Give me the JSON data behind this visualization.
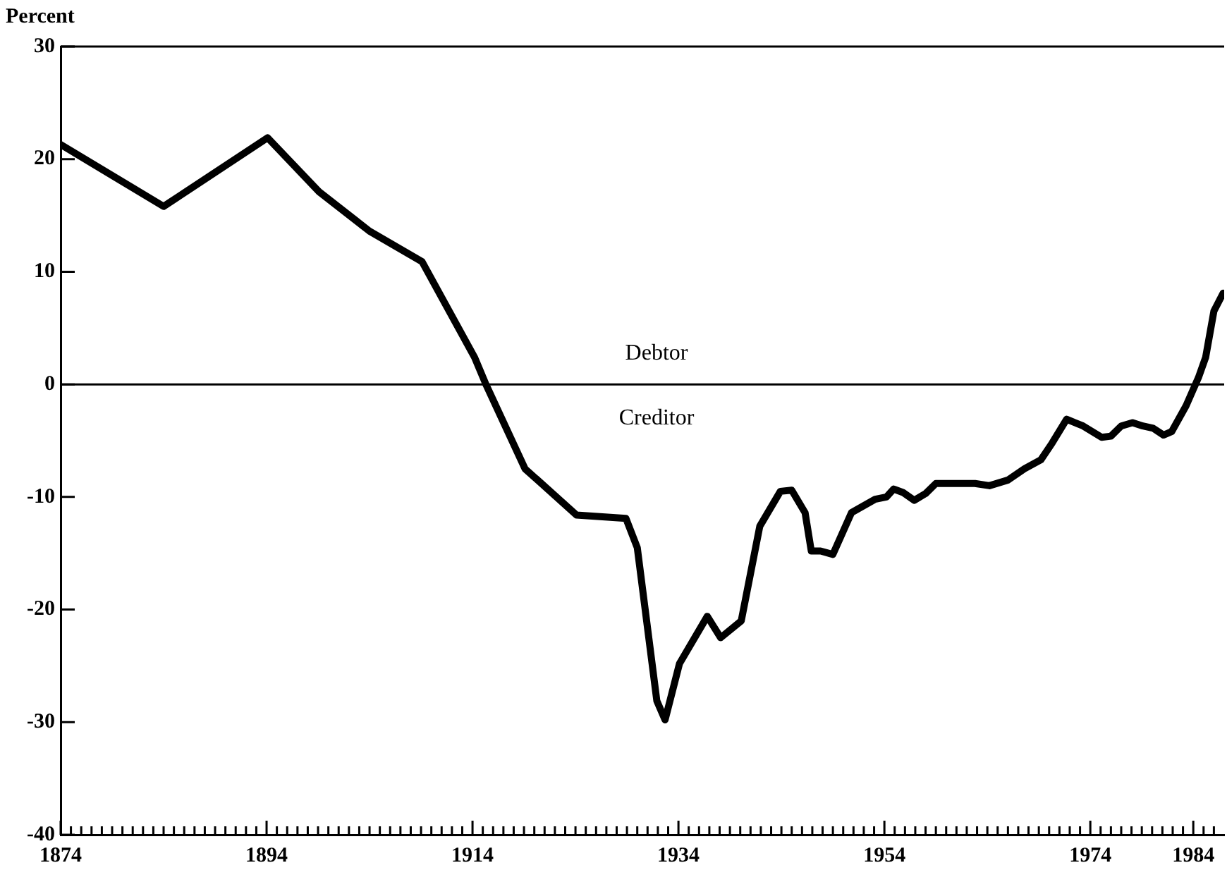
{
  "chart_data": {
    "type": "line",
    "ylabel": "Percent",
    "x": [
      1874,
      1884,
      1894.1,
      1899.1,
      1904,
      1909.1,
      1914.2,
      1915.3,
      1919.1,
      1924.1,
      1928.9,
      1930,
      1931.9,
      1932.7,
      1934.1,
      1936.8,
      1938.1,
      1940.1,
      1941.9,
      1943.9,
      1945,
      1946.3,
      1946.9,
      1947.8,
      1949,
      1950.8,
      1953.1,
      1954.2,
      1954.9,
      1955.8,
      1956.9,
      1958,
      1959,
      1962.8,
      1964.2,
      1966,
      1967.6,
      1969.2,
      1970.3,
      1971.7,
      1973.3,
      1975.1,
      1976,
      1977,
      1978.1,
      1979.1,
      1980.1,
      1981.1,
      1981.9,
      1983.3,
      1984.5,
      1985.2,
      1986,
      1986.9
    ],
    "series": [
      {
        "color": "#000000",
        "values": [
          21.3,
          15.8,
          21.9,
          17.1,
          13.6,
          10.9,
          2.4,
          0,
          -7.5,
          -11.6,
          -11.9,
          -14.5,
          -28.1,
          -29.8,
          -24.8,
          -20.6,
          -22.5,
          -21,
          -12.6,
          -9.5,
          -9.4,
          -11.4,
          -14.8,
          -14.8,
          -15.1,
          -11.4,
          -10.2,
          -10,
          -9.3,
          -9.6,
          -10.3,
          -9.7,
          -8.8,
          -8.8,
          -9,
          -8.5,
          -7.5,
          -6.7,
          -5.2,
          -3.1,
          -3.7,
          -4.7,
          -4.6,
          -3.7,
          -3.4,
          -3.7,
          -3.9,
          -4.5,
          -4.2,
          -1.9,
          0.6,
          2.4,
          6.5,
          8.1
        ]
      }
    ],
    "xlim": [
      1874,
      1987
    ],
    "xticks": [
      1874,
      {
        "value": 1875,
        "label": null
      },
      {
        "value": 1876,
        "label": null
      },
      {
        "value": 1877,
        "label": null
      },
      {
        "value": 1878,
        "label": null
      },
      {
        "value": 1879,
        "label": null
      },
      {
        "value": 1880,
        "label": null
      },
      {
        "value": 1881,
        "label": null
      },
      {
        "value": 1882,
        "label": null
      },
      {
        "value": 1883,
        "label": null
      },
      {
        "value": 1884,
        "label": null
      },
      {
        "value": 1885,
        "label": null
      },
      {
        "value": 1886,
        "label": null
      },
      {
        "value": 1887,
        "label": null
      },
      {
        "value": 1888,
        "label": null
      },
      {
        "value": 1889,
        "label": null
      },
      {
        "value": 1890,
        "label": null
      },
      {
        "value": 1891,
        "label": null
      },
      {
        "value": 1892,
        "label": null
      },
      {
        "value": 1893,
        "label": null
      },
      1894,
      {
        "value": 1895,
        "label": null
      },
      {
        "value": 1896,
        "label": null
      },
      {
        "value": 1897,
        "label": null
      },
      {
        "value": 1898,
        "label": null
      },
      {
        "value": 1899,
        "label": null
      },
      {
        "value": 1900,
        "label": null
      },
      {
        "value": 1901,
        "label": null
      },
      {
        "value": 1902,
        "label": null
      },
      {
        "value": 1903,
        "label": null
      },
      {
        "value": 1904,
        "label": null
      },
      {
        "value": 1905,
        "label": null
      },
      {
        "value": 1906,
        "label": null
      },
      {
        "value": 1907,
        "label": null
      },
      {
        "value": 1908,
        "label": null
      },
      {
        "value": 1909,
        "label": null
      },
      {
        "value": 1910,
        "label": null
      },
      {
        "value": 1911,
        "label": null
      },
      {
        "value": 1912,
        "label": null
      },
      {
        "value": 1913,
        "label": null
      },
      1914,
      {
        "value": 1915,
        "label": null
      },
      {
        "value": 1916,
        "label": null
      },
      {
        "value": 1917,
        "label": null
      },
      {
        "value": 1918,
        "label": null
      },
      {
        "value": 1919,
        "label": null
      },
      {
        "value": 1920,
        "label": null
      },
      {
        "value": 1921,
        "label": null
      },
      {
        "value": 1922,
        "label": null
      },
      {
        "value": 1923,
        "label": null
      },
      {
        "value": 1924,
        "label": null
      },
      {
        "value": 1925,
        "label": null
      },
      {
        "value": 1926,
        "label": null
      },
      {
        "value": 1927,
        "label": null
      },
      {
        "value": 1928,
        "label": null
      },
      {
        "value": 1929,
        "label": null
      },
      {
        "value": 1930,
        "label": null
      },
      {
        "value": 1931,
        "label": null
      },
      {
        "value": 1932,
        "label": null
      },
      {
        "value": 1933,
        "label": null
      },
      1934,
      {
        "value": 1935,
        "label": null
      },
      {
        "value": 1936,
        "label": null
      },
      {
        "value": 1937,
        "label": null
      },
      {
        "value": 1938,
        "label": null
      },
      {
        "value": 1939,
        "label": null
      },
      {
        "value": 1940,
        "label": null
      },
      {
        "value": 1941,
        "label": null
      },
      {
        "value": 1942,
        "label": null
      },
      {
        "value": 1943,
        "label": null
      },
      {
        "value": 1944,
        "label": null
      },
      {
        "value": 1945,
        "label": null
      },
      {
        "value": 1946,
        "label": null
      },
      {
        "value": 1947,
        "label": null
      },
      {
        "value": 1948,
        "label": null
      },
      {
        "value": 1949,
        "label": null
      },
      {
        "value": 1950,
        "label": null
      },
      {
        "value": 1951,
        "label": null
      },
      {
        "value": 1952,
        "label": null
      },
      {
        "value": 1953,
        "label": null
      },
      1954,
      {
        "value": 1955,
        "label": null
      },
      {
        "value": 1956,
        "label": null
      },
      {
        "value": 1957,
        "label": null
      },
      {
        "value": 1958,
        "label": null
      },
      {
        "value": 1959,
        "label": null
      },
      {
        "value": 1960,
        "label": null
      },
      {
        "value": 1961,
        "label": null
      },
      {
        "value": 1962,
        "label": null
      },
      {
        "value": 1963,
        "label": null
      },
      {
        "value": 1964,
        "label": null
      },
      {
        "value": 1965,
        "label": null
      },
      {
        "value": 1966,
        "label": null
      },
      {
        "value": 1967,
        "label": null
      },
      {
        "value": 1968,
        "label": null
      },
      {
        "value": 1969,
        "label": null
      },
      {
        "value": 1970,
        "label": null
      },
      {
        "value": 1971,
        "label": null
      },
      {
        "value": 1972,
        "label": null
      },
      {
        "value": 1973,
        "label": null
      },
      1974,
      {
        "value": 1975,
        "label": null
      },
      {
        "value": 1976,
        "label": null
      },
      {
        "value": 1977,
        "label": null
      },
      {
        "value": 1978,
        "label": null
      },
      {
        "value": 1979,
        "label": null
      },
      {
        "value": 1980,
        "label": null
      },
      {
        "value": 1981,
        "label": null
      },
      {
        "value": 1982,
        "label": null
      },
      {
        "value": 1983,
        "label": null
      },
      1984,
      {
        "value": 1985,
        "label": null
      },
      {
        "value": 1986,
        "label": null
      }
    ],
    "ylim": [
      -40,
      30
    ],
    "yticks": [
      -40,
      -30,
      -20,
      -10,
      0,
      10,
      20,
      30
    ],
    "ref_lines": [
      {
        "axis": "y",
        "value": 0,
        "color": "#000000"
      }
    ],
    "annotations": [
      "Debtor",
      "Creditor"
    ],
    "grid": false,
    "legend": false,
    "marker": "none",
    "line_style": "solid"
  }
}
